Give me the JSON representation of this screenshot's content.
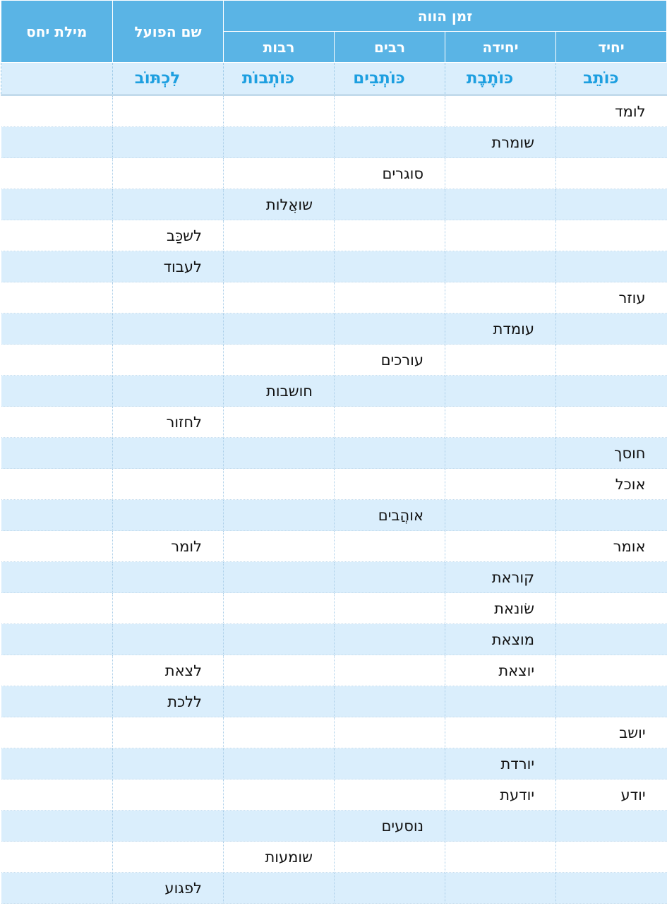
{
  "header": {
    "present_tense": "זמן הווה",
    "infinitive": "שם הפועל",
    "preposition": "מילת יחס",
    "singular_m": "יחיד",
    "singular_f": "יחידה",
    "plural_m": "רבים",
    "plural_f": "רבות"
  },
  "model": {
    "singular_m": "כּוֹתֵב",
    "singular_f": "כּוֹתֶבֶת",
    "plural_m": "כּוֹתְבִים",
    "plural_f": "כּוֹתְבוֹת",
    "infinitive": "לִכְתּוֹב",
    "preposition": ""
  },
  "rows": [
    {
      "singular_m": "לומד",
      "singular_f": "",
      "plural_m": "",
      "plural_f": "",
      "infinitive": "",
      "preposition": ""
    },
    {
      "singular_m": "",
      "singular_f": "שומרת",
      "plural_m": "",
      "plural_f": "",
      "infinitive": "",
      "preposition": ""
    },
    {
      "singular_m": "",
      "singular_f": "",
      "plural_m": "סוגרים",
      "plural_f": "",
      "infinitive": "",
      "preposition": ""
    },
    {
      "singular_m": "",
      "singular_f": "",
      "plural_m": "",
      "plural_f": "שואֲלות",
      "infinitive": "",
      "preposition": ""
    },
    {
      "singular_m": "",
      "singular_f": "",
      "plural_m": "",
      "plural_f": "",
      "infinitive": "לשכַּב",
      "preposition": ""
    },
    {
      "singular_m": "",
      "singular_f": "",
      "plural_m": "",
      "plural_f": "",
      "infinitive": "לעבוד",
      "preposition": ""
    },
    {
      "singular_m": "עוזר",
      "singular_f": "",
      "plural_m": "",
      "plural_f": "",
      "infinitive": "",
      "preposition": ""
    },
    {
      "singular_m": "",
      "singular_f": "עומדת",
      "plural_m": "",
      "plural_f": "",
      "infinitive": "",
      "preposition": ""
    },
    {
      "singular_m": "",
      "singular_f": "",
      "plural_m": "עורכים",
      "plural_f": "",
      "infinitive": "",
      "preposition": ""
    },
    {
      "singular_m": "",
      "singular_f": "",
      "plural_m": "",
      "plural_f": "חושבות",
      "infinitive": "",
      "preposition": ""
    },
    {
      "singular_m": "",
      "singular_f": "",
      "plural_m": "",
      "plural_f": "",
      "infinitive": "לחזור",
      "preposition": ""
    },
    {
      "singular_m": "חוסך",
      "singular_f": "",
      "plural_m": "",
      "plural_f": "",
      "infinitive": "",
      "preposition": ""
    },
    {
      "singular_m": "אוכל",
      "singular_f": "",
      "plural_m": "",
      "plural_f": "",
      "infinitive": "",
      "preposition": ""
    },
    {
      "singular_m": "",
      "singular_f": "",
      "plural_m": "אוהֲבים",
      "plural_f": "",
      "infinitive": "",
      "preposition": ""
    },
    {
      "singular_m": "אומר",
      "singular_f": "",
      "plural_m": "",
      "plural_f": "",
      "infinitive": "לומר",
      "preposition": ""
    },
    {
      "singular_m": "",
      "singular_f": "קוראת",
      "plural_m": "",
      "plural_f": "",
      "infinitive": "",
      "preposition": ""
    },
    {
      "singular_m": "",
      "singular_f": "שׂונאת",
      "plural_m": "",
      "plural_f": "",
      "infinitive": "",
      "preposition": ""
    },
    {
      "singular_m": "",
      "singular_f": "מוצאת",
      "plural_m": "",
      "plural_f": "",
      "infinitive": "",
      "preposition": ""
    },
    {
      "singular_m": "",
      "singular_f": "יוצאת",
      "plural_m": "",
      "plural_f": "",
      "infinitive": "לצאת",
      "preposition": ""
    },
    {
      "singular_m": "",
      "singular_f": "",
      "plural_m": "",
      "plural_f": "",
      "infinitive": "ללכת",
      "preposition": ""
    },
    {
      "singular_m": "יושב",
      "singular_f": "",
      "plural_m": "",
      "plural_f": "",
      "infinitive": "",
      "preposition": ""
    },
    {
      "singular_m": "",
      "singular_f": "יורדת",
      "plural_m": "",
      "plural_f": "",
      "infinitive": "",
      "preposition": ""
    },
    {
      "singular_m": "יודע",
      "singular_f": "יודעת",
      "plural_m": "",
      "plural_f": "",
      "infinitive": "",
      "preposition": ""
    },
    {
      "singular_m": "",
      "singular_f": "",
      "plural_m": "נוסעים",
      "plural_f": "",
      "infinitive": "",
      "preposition": ""
    },
    {
      "singular_m": "",
      "singular_f": "",
      "plural_m": "",
      "plural_f": "שומעות",
      "infinitive": "",
      "preposition": ""
    },
    {
      "singular_m": "",
      "singular_f": "",
      "plural_m": "",
      "plural_f": "",
      "infinitive": "לפגוע",
      "preposition": ""
    }
  ],
  "colors": {
    "header_bg": "#5ab4e5",
    "row_shade": "#daeefc",
    "model_text": "#1d9fe0"
  }
}
